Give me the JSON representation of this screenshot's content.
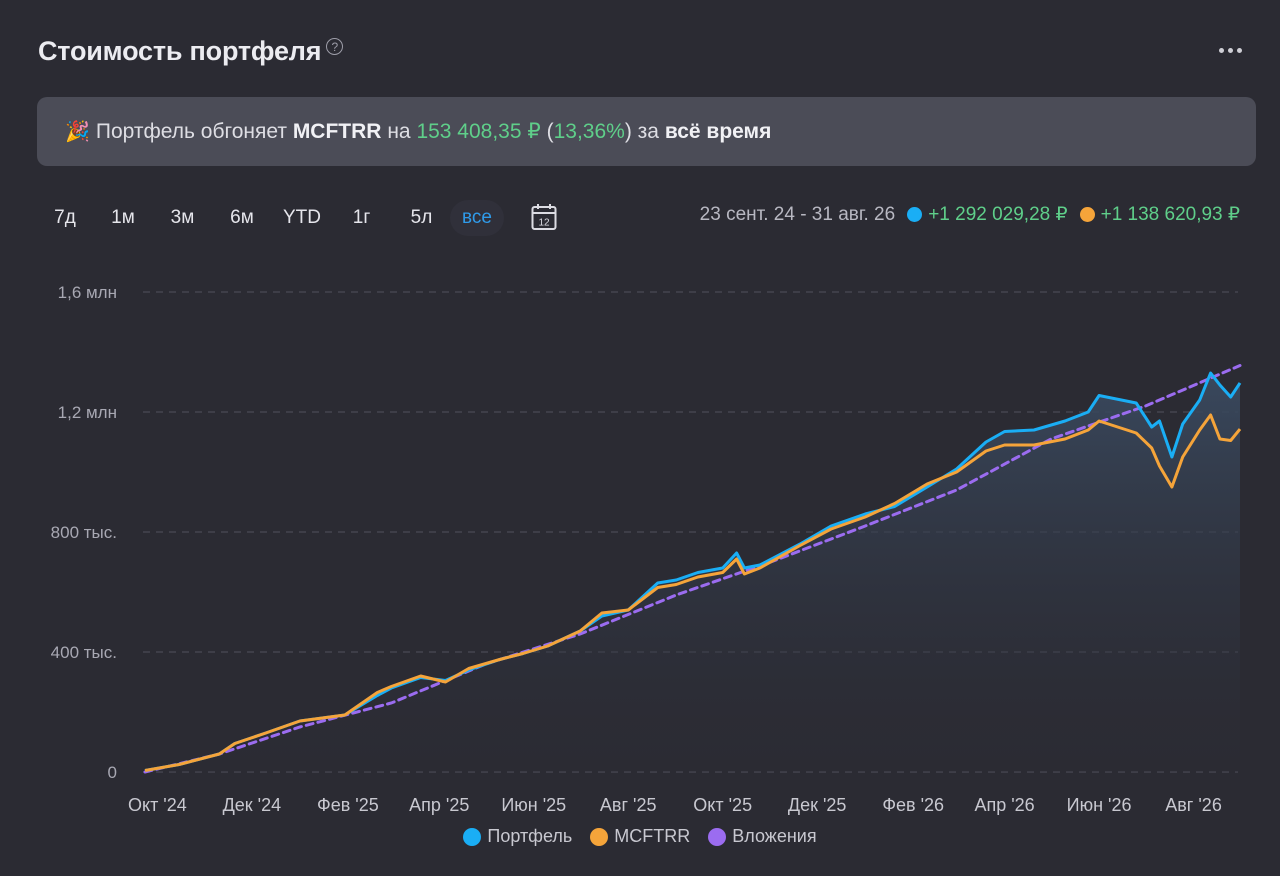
{
  "header": {
    "title": "Стоимость портфеля",
    "help_glyph": "?",
    "help_icon": "question-circle-icon",
    "more_icon": "more-dots-icon"
  },
  "banner": {
    "emoji": "🎉",
    "part1": "Портфель обгоняет",
    "benchmark": "MCFTRR",
    "part2": "на",
    "amount": "153 408,35 ₽",
    "paren_open": "(",
    "percent": "13,36%",
    "paren_close": ")",
    "part3": "за",
    "period": "всё время"
  },
  "periods": {
    "items": [
      "7д",
      "1м",
      "3м",
      "6м",
      "YTD",
      "1г",
      "5л",
      "все"
    ],
    "active": "все",
    "calendar_day": "12"
  },
  "summary": {
    "range": "23 сент. 24 - 31 авг. 26",
    "portfolio_change": "+1 292 029,28 ₽",
    "benchmark_change": "+1 138 620,93 ₽"
  },
  "colors": {
    "portfolio": "#1aaef5",
    "benchmark": "#f5a43a",
    "investments": "#9b6cf0",
    "positive": "#5fcf8a",
    "active_period": "#2f9bea"
  },
  "legend": {
    "portfolio": "Портфель",
    "benchmark": "MCFTRR",
    "investments": "Вложения"
  },
  "chart_data": {
    "type": "line",
    "y_ticks": [
      "0",
      "400 тыс.",
      "800 тыс.",
      "1,2 млн",
      "1,6 млн"
    ],
    "y_tick_values": [
      0,
      400000,
      800000,
      1200000,
      1600000
    ],
    "ylim": [
      0,
      1600000
    ],
    "x_tick_labels": [
      "Окт '24",
      "Дек '24",
      "Фев '25",
      "Апр '25",
      "Июн '25",
      "Авг '25",
      "Окт '25",
      "Дек '25",
      "Фев '26",
      "Апр '26",
      "Июн '26",
      "Авг '26"
    ],
    "x_tick_dates": [
      "2024-10-01",
      "2024-12-01",
      "2025-02-01",
      "2025-04-01",
      "2025-06-01",
      "2025-08-01",
      "2025-10-01",
      "2025-12-01",
      "2026-02-01",
      "2026-04-01",
      "2026-06-01",
      "2026-08-01"
    ],
    "x_range": [
      "2024-09-23",
      "2026-08-31"
    ],
    "grid": "horizontal dashed",
    "legend_position": "bottom",
    "series": [
      {
        "name": "Портфель",
        "key": "portfolio",
        "points": [
          [
            "2024-09-23",
            5000
          ],
          [
            "2024-10-15",
            25000
          ],
          [
            "2024-11-10",
            60000
          ],
          [
            "2024-11-20",
            95000
          ],
          [
            "2024-12-10",
            130000
          ],
          [
            "2025-01-01",
            170000
          ],
          [
            "2025-01-30",
            190000
          ],
          [
            "2025-02-20",
            255000
          ],
          [
            "2025-03-01",
            280000
          ],
          [
            "2025-03-20",
            315000
          ],
          [
            "2025-04-05",
            305000
          ],
          [
            "2025-04-20",
            340000
          ],
          [
            "2025-05-10",
            375000
          ],
          [
            "2025-05-25",
            395000
          ],
          [
            "2025-06-10",
            420000
          ],
          [
            "2025-07-01",
            470000
          ],
          [
            "2025-07-15",
            520000
          ],
          [
            "2025-08-01",
            540000
          ],
          [
            "2025-08-20",
            630000
          ],
          [
            "2025-09-01",
            640000
          ],
          [
            "2025-09-15",
            665000
          ],
          [
            "2025-10-01",
            680000
          ],
          [
            "2025-10-10",
            730000
          ],
          [
            "2025-10-15",
            680000
          ],
          [
            "2025-10-25",
            690000
          ],
          [
            "2025-11-20",
            760000
          ],
          [
            "2025-12-10",
            820000
          ],
          [
            "2026-01-01",
            860000
          ],
          [
            "2026-01-20",
            885000
          ],
          [
            "2026-02-10",
            950000
          ],
          [
            "2026-03-01",
            1010000
          ],
          [
            "2026-03-20",
            1100000
          ],
          [
            "2026-04-01",
            1135000
          ],
          [
            "2026-04-20",
            1140000
          ],
          [
            "2026-05-10",
            1170000
          ],
          [
            "2026-05-25",
            1200000
          ],
          [
            "2026-06-01",
            1255000
          ],
          [
            "2026-06-25",
            1230000
          ],
          [
            "2026-07-05",
            1150000
          ],
          [
            "2026-07-10",
            1170000
          ],
          [
            "2026-07-18",
            1050000
          ],
          [
            "2026-07-25",
            1160000
          ],
          [
            "2026-08-05",
            1240000
          ],
          [
            "2026-08-12",
            1330000
          ],
          [
            "2026-08-18",
            1290000
          ],
          [
            "2026-08-25",
            1250000
          ],
          [
            "2026-08-31",
            1297000
          ]
        ]
      },
      {
        "name": "MCFTRR",
        "key": "benchmark",
        "points": [
          [
            "2024-09-23",
            5000
          ],
          [
            "2024-10-15",
            25000
          ],
          [
            "2024-11-10",
            60000
          ],
          [
            "2024-11-20",
            95000
          ],
          [
            "2024-12-10",
            130000
          ],
          [
            "2025-01-01",
            170000
          ],
          [
            "2025-01-30",
            190000
          ],
          [
            "2025-02-20",
            265000
          ],
          [
            "2025-03-01",
            285000
          ],
          [
            "2025-03-20",
            320000
          ],
          [
            "2025-04-05",
            300000
          ],
          [
            "2025-04-20",
            345000
          ],
          [
            "2025-05-10",
            375000
          ],
          [
            "2025-05-25",
            395000
          ],
          [
            "2025-06-10",
            420000
          ],
          [
            "2025-07-01",
            470000
          ],
          [
            "2025-07-15",
            530000
          ],
          [
            "2025-08-01",
            540000
          ],
          [
            "2025-08-20",
            615000
          ],
          [
            "2025-09-01",
            625000
          ],
          [
            "2025-09-15",
            650000
          ],
          [
            "2025-10-01",
            665000
          ],
          [
            "2025-10-10",
            710000
          ],
          [
            "2025-10-15",
            660000
          ],
          [
            "2025-10-25",
            680000
          ],
          [
            "2025-11-20",
            755000
          ],
          [
            "2025-12-10",
            810000
          ],
          [
            "2026-01-01",
            850000
          ],
          [
            "2026-01-20",
            895000
          ],
          [
            "2026-02-10",
            960000
          ],
          [
            "2026-03-01",
            1000000
          ],
          [
            "2026-03-20",
            1070000
          ],
          [
            "2026-04-01",
            1090000
          ],
          [
            "2026-04-20",
            1090000
          ],
          [
            "2026-05-10",
            1110000
          ],
          [
            "2026-05-25",
            1140000
          ],
          [
            "2026-06-01",
            1170000
          ],
          [
            "2026-06-25",
            1130000
          ],
          [
            "2026-07-05",
            1080000
          ],
          [
            "2026-07-10",
            1020000
          ],
          [
            "2026-07-18",
            950000
          ],
          [
            "2026-07-25",
            1050000
          ],
          [
            "2026-08-05",
            1140000
          ],
          [
            "2026-08-12",
            1190000
          ],
          [
            "2026-08-18",
            1110000
          ],
          [
            "2026-08-25",
            1105000
          ],
          [
            "2026-08-31",
            1143000
          ]
        ]
      },
      {
        "name": "Вложения",
        "key": "investments",
        "points": [
          [
            "2024-09-23",
            0
          ],
          [
            "2024-11-10",
            60000
          ],
          [
            "2025-01-01",
            150000
          ],
          [
            "2025-03-01",
            230000
          ],
          [
            "2025-05-01",
            360000
          ],
          [
            "2025-07-01",
            460000
          ],
          [
            "2025-09-01",
            590000
          ],
          [
            "2025-11-01",
            700000
          ],
          [
            "2026-01-01",
            820000
          ],
          [
            "2026-03-01",
            940000
          ],
          [
            "2026-05-01",
            1110000
          ],
          [
            "2026-07-01",
            1220000
          ],
          [
            "2026-08-31",
            1355000
          ]
        ]
      }
    ]
  }
}
